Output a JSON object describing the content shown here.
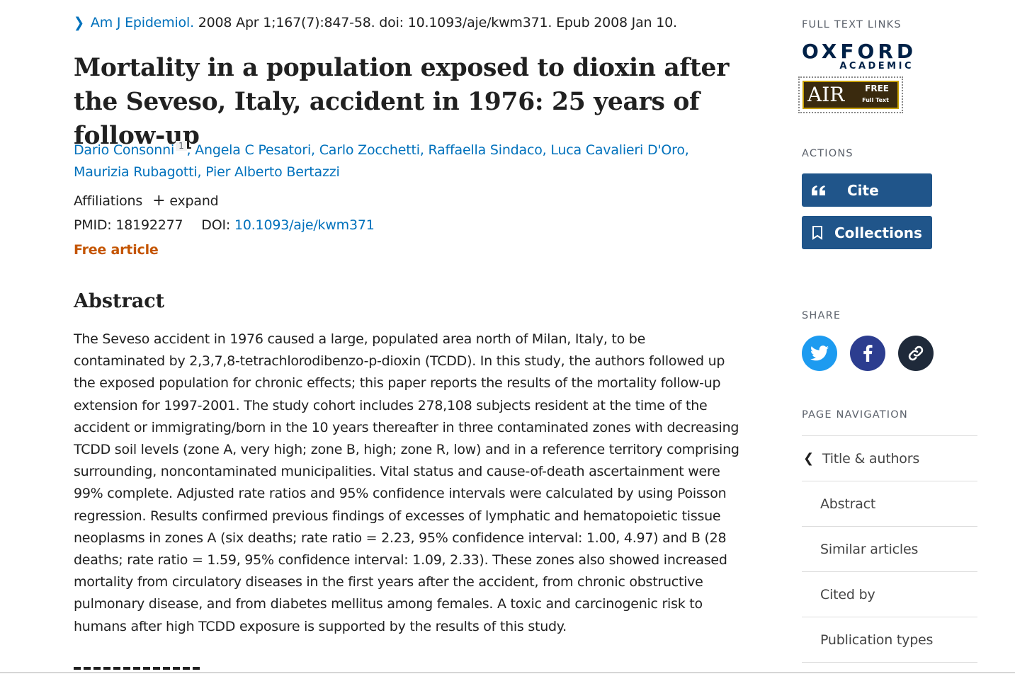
{
  "citation": {
    "journal": "Am J Epidemiol.",
    "details": "2008 Apr 1;167(7):847-58. doi: 10.1093/aje/kwm371. Epub 2008 Jan 10."
  },
  "article": {
    "title": "Mortality in a population exposed to dioxin after the Seveso, Italy, accident in 1976: 25 years of follow-up",
    "authors": [
      "Dario Consonni",
      "Angela C Pesatori",
      "Carlo Zocchetti",
      "Raffaella Sindaco",
      "Luca Cavalieri D'Oro",
      "Maurizia Rubagotti",
      "Pier Alberto Bertazzi"
    ],
    "author_affiliation_marker": "1",
    "affiliations_label": "Affiliations",
    "expand_label": "expand",
    "pmid_label": "PMID:",
    "pmid": "18192277",
    "doi_label": "DOI:",
    "doi": "10.1093/aje/kwm371",
    "free_label": "Free article"
  },
  "abstract": {
    "heading": "Abstract",
    "text": "The Seveso accident in 1976 caused a large, populated area north of Milan, Italy, to be contaminated by 2,3,7,8-tetrachlorodibenzo-p-dioxin (TCDD). In this study, the authors followed up the exposed population for chronic effects; this paper reports the results of the mortality follow-up extension for 1997-2001. The study cohort includes 278,108 subjects resident at the time of the accident or immigrating/born in the 10 years thereafter in three contaminated zones with decreasing TCDD soil levels (zone A, very high; zone B, high; zone R, low) and in a reference territory comprising surrounding, noncontaminated municipalities. Vital status and cause-of-death ascertainment were 99% complete. Adjusted rate ratios and 95% confidence intervals were calculated by using Poisson regression. Results confirmed previous findings of excesses of lymphatic and hematopoietic tissue neoplasms in zones A (six deaths; rate ratio = 2.23, 95% confidence interval: 1.00, 4.97) and B (28 deaths; rate ratio = 1.59, 95% confidence interval: 1.09, 2.33). These zones also showed increased mortality from circulatory diseases in the first years after the accident, from chronic obstructive pulmonary disease, and from diabetes mellitus among females. A toxic and carcinogenic risk to humans after high TCDD exposure is supported by the results of this study."
  },
  "sidebar": {
    "full_text_label": "FULL TEXT LINKS",
    "oxford_line1": "OXFORD",
    "oxford_line2": "ACADEMIC",
    "air_logo": "AIR",
    "air_free": "FREE",
    "air_full": "Full Text",
    "actions_label": "ACTIONS",
    "cite_label": "Cite",
    "collections_label": "Collections",
    "share_label": "SHARE",
    "page_nav_label": "PAGE NAVIGATION",
    "nav_items": [
      "Title & authors",
      "Abstract",
      "Similar articles",
      "Cited by",
      "Publication types"
    ]
  },
  "colors": {
    "link": "#0071bc",
    "free_article": "#c45500",
    "action_button": "#20558a",
    "twitter": "#1d9bf0",
    "facebook": "#2c3d8f",
    "permalink": "#1f2a3a"
  },
  "icons": {
    "citation_chevron": "chevron-right-icon",
    "expand": "plus-icon",
    "cite": "quote-icon",
    "collections": "bookmark-icon",
    "share": [
      "twitter-icon",
      "facebook-icon",
      "link-icon"
    ],
    "nav_back": "chevron-left-icon"
  }
}
